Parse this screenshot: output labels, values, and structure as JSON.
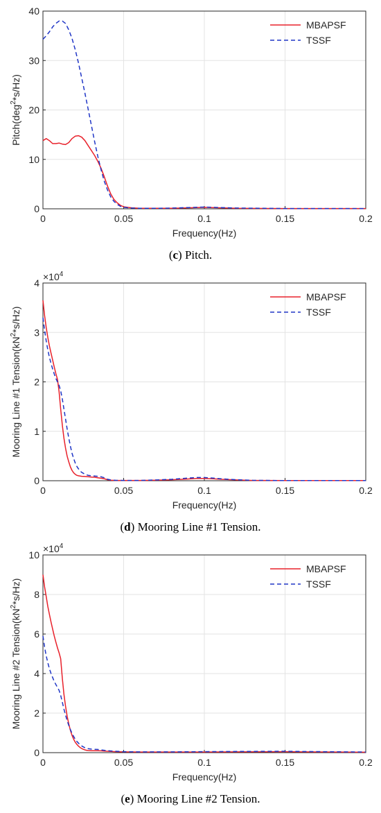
{
  "chart_data": [
    {
      "type": "line",
      "caption_letter": "c",
      "caption_text": " Pitch.",
      "ylabel_pre": "Pitch(deg",
      "ylabel_sup": "2",
      "ylabel_post": "*s/Hz)",
      "xlabel": "Frequency(Hz)",
      "xlim": [
        0,
        0.2
      ],
      "ylim": [
        0,
        40
      ],
      "xticks": [
        "0",
        "0.05",
        "0.1",
        "0.15",
        "0.2"
      ],
      "yticks": [
        "0",
        "10",
        "20",
        "30",
        "40"
      ],
      "exponent": null,
      "grid": true,
      "legend_position": "top-right",
      "series": [
        {
          "name": "MBAPSF",
          "color": "#e8202a",
          "style": "solid",
          "x": [
            0,
            0.002,
            0.004,
            0.006,
            0.008,
            0.01,
            0.012,
            0.014,
            0.016,
            0.018,
            0.02,
            0.022,
            0.024,
            0.026,
            0.028,
            0.03,
            0.032,
            0.034,
            0.036,
            0.038,
            0.04,
            0.042,
            0.044,
            0.046,
            0.048,
            0.05,
            0.055,
            0.06,
            0.07,
            0.08,
            0.09,
            0.1,
            0.11,
            0.12,
            0.15,
            0.2
          ],
          "y": [
            13.8,
            14.2,
            13.8,
            13.2,
            13.2,
            13.3,
            13.1,
            13.0,
            13.4,
            14.2,
            14.7,
            14.8,
            14.5,
            13.8,
            12.8,
            11.8,
            10.8,
            9.6,
            8.2,
            6.5,
            4.6,
            3.0,
            1.9,
            1.2,
            0.7,
            0.4,
            0.2,
            0.1,
            0.1,
            0.1,
            0.2,
            0.3,
            0.2,
            0.1,
            0.05,
            0.05
          ]
        },
        {
          "name": "TSSF",
          "color": "#1f35c6",
          "style": "dashed",
          "x": [
            0,
            0.002,
            0.004,
            0.006,
            0.008,
            0.01,
            0.012,
            0.014,
            0.016,
            0.018,
            0.02,
            0.022,
            0.024,
            0.026,
            0.028,
            0.03,
            0.032,
            0.034,
            0.036,
            0.038,
            0.04,
            0.042,
            0.044,
            0.046,
            0.048,
            0.05,
            0.055,
            0.06,
            0.07,
            0.08,
            0.09,
            0.1,
            0.11,
            0.12,
            0.15,
            0.2
          ],
          "y": [
            34.3,
            35.0,
            35.8,
            36.8,
            37.5,
            38.0,
            38.0,
            37.5,
            36.2,
            34.5,
            32.2,
            29.5,
            26.5,
            23.4,
            20.2,
            16.9,
            13.6,
            10.6,
            7.9,
            5.6,
            3.8,
            2.4,
            1.5,
            0.9,
            0.5,
            0.3,
            0.15,
            0.1,
            0.1,
            0.15,
            0.25,
            0.35,
            0.25,
            0.15,
            0.05,
            0.05
          ]
        }
      ]
    },
    {
      "type": "line",
      "caption_letter": "d",
      "caption_text": " Mooring Line #1 Tension.",
      "ylabel_pre": "Mooring Line #1 Tension(kN",
      "ylabel_sup": "2",
      "ylabel_post": "*s/Hz)",
      "xlabel": "Frequency(Hz)",
      "xlim": [
        0,
        0.2
      ],
      "ylim": [
        0,
        4
      ],
      "xticks": [
        "0",
        "0.05",
        "0.1",
        "0.15",
        "0.2"
      ],
      "yticks": [
        "0",
        "1",
        "2",
        "3",
        "4"
      ],
      "exponent": {
        "base": "×10",
        "power": "4"
      },
      "grid": true,
      "legend_position": "top-right",
      "series": [
        {
          "name": "MBAPSF",
          "color": "#e8202a",
          "style": "solid",
          "x": [
            0,
            0.001,
            0.002,
            0.003,
            0.004,
            0.005,
            0.006,
            0.007,
            0.008,
            0.009,
            0.01,
            0.011,
            0.012,
            0.013,
            0.014,
            0.015,
            0.016,
            0.017,
            0.018,
            0.019,
            0.02,
            0.021,
            0.022,
            0.023,
            0.024,
            0.025,
            0.026,
            0.028,
            0.03,
            0.032,
            0.034,
            0.036,
            0.038,
            0.04,
            0.042,
            0.045,
            0.05,
            0.06,
            0.07,
            0.08,
            0.09,
            0.095,
            0.1,
            0.105,
            0.11,
            0.12,
            0.13,
            0.15,
            0.2
          ],
          "y": [
            3.65,
            3.35,
            3.1,
            2.9,
            2.73,
            2.58,
            2.44,
            2.3,
            2.17,
            2.05,
            1.8,
            1.45,
            1.12,
            0.86,
            0.66,
            0.5,
            0.38,
            0.28,
            0.21,
            0.16,
            0.13,
            0.11,
            0.1,
            0.095,
            0.09,
            0.088,
            0.085,
            0.08,
            0.075,
            0.07,
            0.06,
            0.05,
            0.04,
            0.02,
            0.01,
            0.005,
            0.005,
            0.005,
            0.01,
            0.02,
            0.035,
            0.045,
            0.045,
            0.04,
            0.03,
            0.015,
            0.005,
            0.003,
            0.003
          ]
        },
        {
          "name": "TSSF",
          "color": "#1f35c6",
          "style": "dashed",
          "x": [
            0,
            0.001,
            0.002,
            0.003,
            0.004,
            0.005,
            0.006,
            0.007,
            0.008,
            0.009,
            0.01,
            0.011,
            0.012,
            0.013,
            0.014,
            0.015,
            0.016,
            0.017,
            0.018,
            0.019,
            0.02,
            0.021,
            0.022,
            0.023,
            0.024,
            0.025,
            0.026,
            0.028,
            0.03,
            0.032,
            0.034,
            0.036,
            0.038,
            0.04,
            0.042,
            0.045,
            0.05,
            0.06,
            0.07,
            0.08,
            0.09,
            0.095,
            0.1,
            0.105,
            0.11,
            0.12,
            0.13,
            0.15,
            0.2
          ],
          "y": [
            3.3,
            3.05,
            2.83,
            2.65,
            2.5,
            2.37,
            2.26,
            2.16,
            2.07,
            2.0,
            1.93,
            1.82,
            1.65,
            1.45,
            1.25,
            1.05,
            0.86,
            0.7,
            0.56,
            0.45,
            0.36,
            0.29,
            0.24,
            0.2,
            0.17,
            0.15,
            0.13,
            0.11,
            0.1,
            0.095,
            0.09,
            0.08,
            0.06,
            0.03,
            0.015,
            0.008,
            0.005,
            0.005,
            0.015,
            0.03,
            0.055,
            0.065,
            0.065,
            0.055,
            0.04,
            0.02,
            0.008,
            0.003,
            0.003
          ]
        }
      ]
    },
    {
      "type": "line",
      "caption_letter": "e",
      "caption_text": " Mooring Line #2 Tension.",
      "ylabel_pre": "Mooring Line #2 Tension(kN",
      "ylabel_sup": "2",
      "ylabel_post": "*s/Hz)",
      "xlabel": "Frequency(Hz)",
      "xlim": [
        0,
        0.2
      ],
      "ylim": [
        0,
        10
      ],
      "xticks": [
        "0",
        "0.05",
        "0.1",
        "0.15",
        "0.2"
      ],
      "yticks": [
        "0",
        "2",
        "4",
        "6",
        "8",
        "10"
      ],
      "exponent": {
        "base": "×10",
        "power": "4"
      },
      "grid": true,
      "legend_position": "top-right",
      "series": [
        {
          "name": "MBAPSF",
          "color": "#e8202a",
          "style": "solid",
          "x": [
            0,
            0.001,
            0.002,
            0.003,
            0.004,
            0.005,
            0.006,
            0.007,
            0.008,
            0.009,
            0.01,
            0.011,
            0.012,
            0.013,
            0.014,
            0.015,
            0.016,
            0.017,
            0.018,
            0.019,
            0.02,
            0.021,
            0.022,
            0.023,
            0.024,
            0.025,
            0.026,
            0.027,
            0.028,
            0.03,
            0.032,
            0.034,
            0.036,
            0.038,
            0.04,
            0.045,
            0.05,
            0.06,
            0.08,
            0.1,
            0.12,
            0.15,
            0.16,
            0.2
          ],
          "y": [
            9.0,
            8.4,
            7.9,
            7.4,
            7.0,
            6.6,
            6.25,
            5.9,
            5.6,
            5.3,
            5.05,
            4.75,
            3.75,
            2.95,
            2.35,
            1.85,
            1.45,
            1.13,
            0.88,
            0.68,
            0.53,
            0.42,
            0.33,
            0.26,
            0.21,
            0.17,
            0.14,
            0.12,
            0.11,
            0.1,
            0.1,
            0.1,
            0.09,
            0.08,
            0.07,
            0.05,
            0.04,
            0.03,
            0.03,
            0.03,
            0.04,
            0.05,
            0.04,
            0.02
          ]
        },
        {
          "name": "TSSF",
          "color": "#1f35c6",
          "style": "dashed",
          "x": [
            0,
            0.001,
            0.002,
            0.003,
            0.004,
            0.005,
            0.006,
            0.007,
            0.008,
            0.009,
            0.01,
            0.011,
            0.012,
            0.013,
            0.014,
            0.015,
            0.016,
            0.017,
            0.018,
            0.019,
            0.02,
            0.021,
            0.022,
            0.023,
            0.024,
            0.025,
            0.026,
            0.027,
            0.028,
            0.03,
            0.032,
            0.034,
            0.036,
            0.038,
            0.04,
            0.045,
            0.05,
            0.06,
            0.08,
            0.1,
            0.12,
            0.15,
            0.16,
            0.2
          ],
          "y": [
            5.9,
            5.35,
            4.9,
            4.55,
            4.25,
            4.0,
            3.8,
            3.6,
            3.45,
            3.3,
            3.15,
            2.9,
            2.55,
            2.2,
            1.9,
            1.62,
            1.38,
            1.17,
            0.98,
            0.82,
            0.68,
            0.57,
            0.48,
            0.4,
            0.34,
            0.29,
            0.25,
            0.22,
            0.2,
            0.18,
            0.17,
            0.16,
            0.14,
            0.12,
            0.1,
            0.07,
            0.05,
            0.04,
            0.04,
            0.05,
            0.06,
            0.07,
            0.06,
            0.03
          ]
        }
      ]
    }
  ]
}
